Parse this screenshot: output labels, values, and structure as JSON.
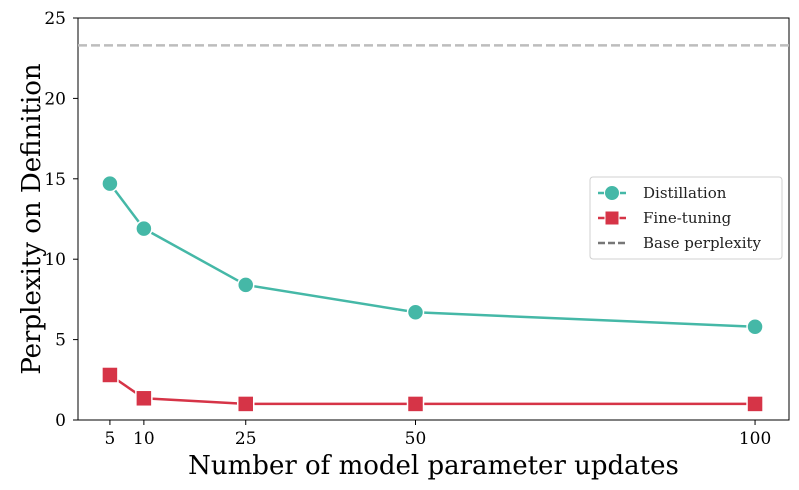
{
  "chart_data": {
    "type": "line",
    "title": "",
    "xlabel": "Number of model parameter updates",
    "ylabel": "Perplexity on Definition",
    "x": [
      5,
      10,
      25,
      50,
      100
    ],
    "xticks": [
      "5",
      "10",
      "25",
      "50",
      "100"
    ],
    "yticks": [
      "0",
      "5",
      "10",
      "15",
      "20",
      "25"
    ],
    "xlim": [
      0.3,
      105
    ],
    "ylim": [
      0,
      25
    ],
    "grid": false,
    "legend_position": "center-right",
    "series": [
      {
        "name": "Distillation",
        "values": [
          14.7,
          11.9,
          8.4,
          6.7,
          5.8
        ],
        "color": "#45b8a7",
        "marker": "circle"
      },
      {
        "name": "Fine-tuning",
        "values": [
          2.8,
          1.35,
          1.0,
          1.0,
          1.0
        ],
        "color": "#d63447",
        "marker": "square"
      }
    ],
    "reference_line": {
      "name": "Base perplexity",
      "value": 23.3,
      "color": "#bdbdbd",
      "legend_color": "#777777"
    }
  }
}
